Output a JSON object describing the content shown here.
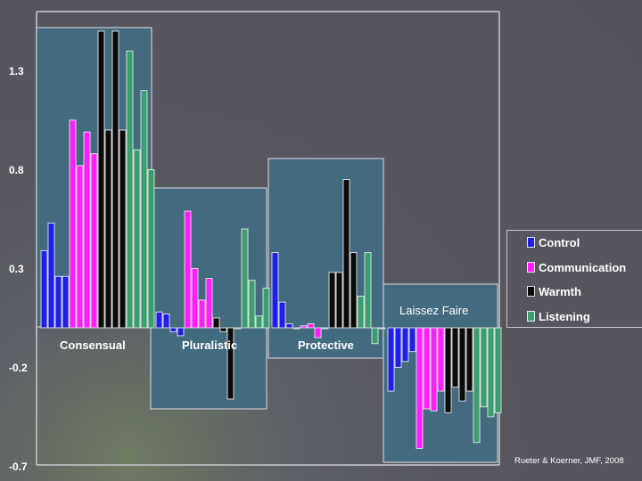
{
  "chart_data": {
    "type": "bar",
    "groups": [
      "Consensual",
      "Pluralistic",
      "Protective",
      "Laissez Faire"
    ],
    "y_ticks": [
      "1.3",
      "0.8",
      "0.3",
      "-0.2",
      "-0.7"
    ],
    "ylim": [
      -0.7,
      1.4
    ],
    "legend_position": "right",
    "series": [
      {
        "name": "Control",
        "color": "#1f1fe6",
        "values": [
          [
            0.39,
            0.53,
            0.26,
            0.26
          ],
          [
            0.08,
            0.07,
            -0.02,
            -0.04
          ],
          [
            0.38,
            0.13,
            0.02,
            0.0
          ],
          [
            -0.32,
            -0.2,
            -0.17,
            -0.12
          ]
        ]
      },
      {
        "name": "Communication",
        "color": "#ff1fff",
        "values": [
          [
            1.05,
            0.82,
            0.99,
            0.88
          ],
          [
            0.59,
            0.3,
            0.14,
            0.25
          ],
          [
            0.01,
            0.02,
            -0.05,
            0.0
          ],
          [
            -0.61,
            -0.41,
            -0.42,
            -0.32
          ]
        ]
      },
      {
        "name": "Warmth",
        "color": "#0a0a0a",
        "values": [
          [
            1.5,
            1.0,
            1.5,
            1.0
          ],
          [
            0.05,
            -0.02,
            -0.36,
            0.0
          ],
          [
            0.28,
            0.28,
            0.75,
            0.38
          ],
          [
            -0.43,
            -0.3,
            -0.37,
            -0.32
          ]
        ]
      },
      {
        "name": "Listening",
        "color": "#3a9e6e",
        "values": [
          [
            1.4,
            0.9,
            1.2,
            0.8
          ],
          [
            0.5,
            0.24,
            0.06,
            0.2
          ],
          [
            0.16,
            0.38,
            -0.08,
            0.0
          ],
          [
            -0.58,
            -0.4,
            -0.45,
            -0.43
          ]
        ]
      }
    ]
  },
  "source_note": "Rueter & Koerner, JMF, 2008"
}
